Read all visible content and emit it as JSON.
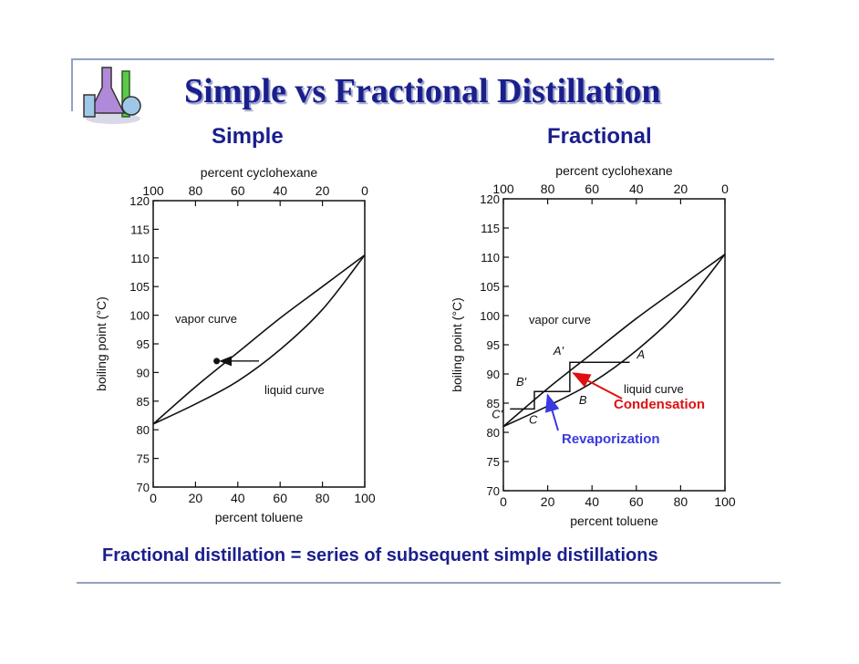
{
  "title": "Simple vs Fractional Distillation",
  "footer": "Fractional distillation  = series of subsequent simple distillations",
  "logo_icon": "lab-flasks-icon",
  "colors": {
    "title": "#1a1f8c",
    "condensation": "#e01010",
    "revaporization": "#3a3ae0",
    "frame": "#8fa3c0"
  },
  "chart_data": [
    {
      "type": "line",
      "title": "Simple",
      "xlabel": "percent toluene",
      "x2label": "percent cyclohexane",
      "ylabel": "boiling point (°C)",
      "xlim": [
        0,
        100
      ],
      "ylim": [
        70,
        120
      ],
      "x_ticks": [
        0,
        20,
        40,
        60,
        80,
        100
      ],
      "x2_ticks": [
        100,
        80,
        60,
        40,
        20,
        0
      ],
      "y_ticks": [
        70,
        75,
        80,
        85,
        90,
        95,
        100,
        105,
        110,
        115,
        120
      ],
      "series": [
        {
          "name": "vapor curve",
          "x": [
            0,
            20,
            40,
            60,
            80,
            100
          ],
          "y": [
            81,
            87.5,
            93.5,
            99.5,
            105,
            110.5
          ]
        },
        {
          "name": "liquid curve",
          "x": [
            0,
            20,
            40,
            60,
            80,
            100
          ],
          "y": [
            81,
            84.5,
            88.5,
            94,
            101,
            110.5
          ]
        }
      ],
      "annotations": [
        {
          "type": "arrow",
          "from": [
            50,
            92
          ],
          "to": [
            30,
            92
          ]
        },
        {
          "type": "point",
          "x": 30,
          "y": 92
        }
      ]
    },
    {
      "type": "line",
      "title": "Fractional",
      "xlabel": "percent toluene",
      "x2label": "percent cyclohexane",
      "ylabel": "boiling point (°C)",
      "xlim": [
        0,
        100
      ],
      "ylim": [
        70,
        120
      ],
      "x_ticks": [
        0,
        20,
        40,
        60,
        80,
        100
      ],
      "x2_ticks": [
        100,
        80,
        60,
        40,
        20,
        0
      ],
      "y_ticks": [
        70,
        75,
        80,
        85,
        90,
        95,
        100,
        105,
        110,
        115,
        120
      ],
      "series": [
        {
          "name": "vapor curve",
          "x": [
            0,
            20,
            40,
            60,
            80,
            100
          ],
          "y": [
            81,
            87.5,
            93.5,
            99.5,
            105,
            110.5
          ]
        },
        {
          "name": "liquid curve",
          "x": [
            0,
            20,
            40,
            60,
            80,
            100
          ],
          "y": [
            81,
            84.5,
            88.5,
            94,
            101,
            110.5
          ]
        }
      ],
      "steps": [
        {
          "name": "A",
          "x": 57,
          "y": 92
        },
        {
          "name": "A'",
          "x": 30,
          "y": 92
        },
        {
          "name": "B",
          "x": 30,
          "y": 87
        },
        {
          "name": "B'",
          "x": 14,
          "y": 87
        },
        {
          "name": "C",
          "x": 14,
          "y": 84
        },
        {
          "name": "C'",
          "x": 3,
          "y": 84
        }
      ],
      "labels": {
        "condensation": "Condensation",
        "revaporization": "Revaporization"
      }
    }
  ]
}
